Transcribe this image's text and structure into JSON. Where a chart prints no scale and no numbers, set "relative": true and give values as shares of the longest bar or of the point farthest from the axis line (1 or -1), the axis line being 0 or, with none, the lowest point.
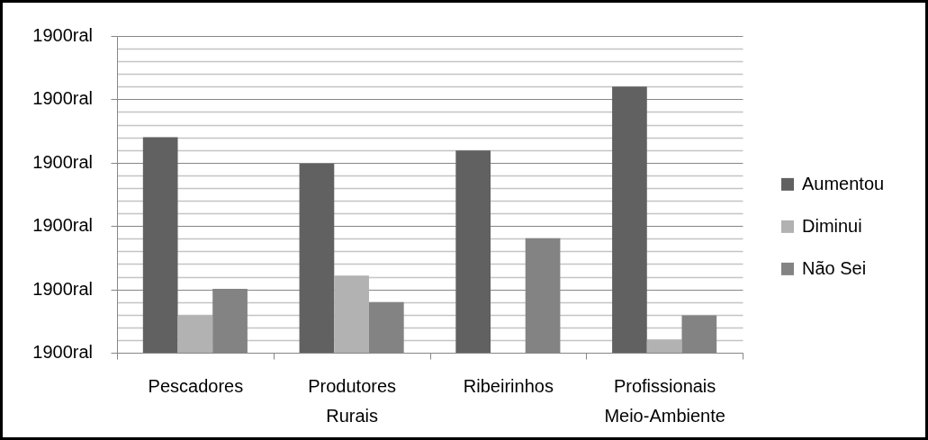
{
  "chart_data": {
    "type": "bar",
    "relative": true,
    "categories": [
      "Pescadores",
      "Produtores Rurais",
      "Ribeirinhos",
      "Profissionais Meio-Ambiente"
    ],
    "series": [
      {
        "name": "Aumentou",
        "color": "#616161",
        "values": [
          0.81,
          0.71,
          0.76,
          1
        ]
      },
      {
        "name": "Diminui",
        "color": "#b2b2b2",
        "values": [
          0.14,
          0.29,
          null,
          0.05
        ]
      },
      {
        "name": "Não Sei",
        "color": "#838383",
        "values": [
          0.24,
          0.19,
          0.43,
          0.14
        ]
      }
    ],
    "annotations": [
      "1900ral",
      "1900ral",
      "1900ral",
      "1900ral",
      "1900ral",
      "1900ral"
    ],
    "grid": "y",
    "legend": "right"
  }
}
